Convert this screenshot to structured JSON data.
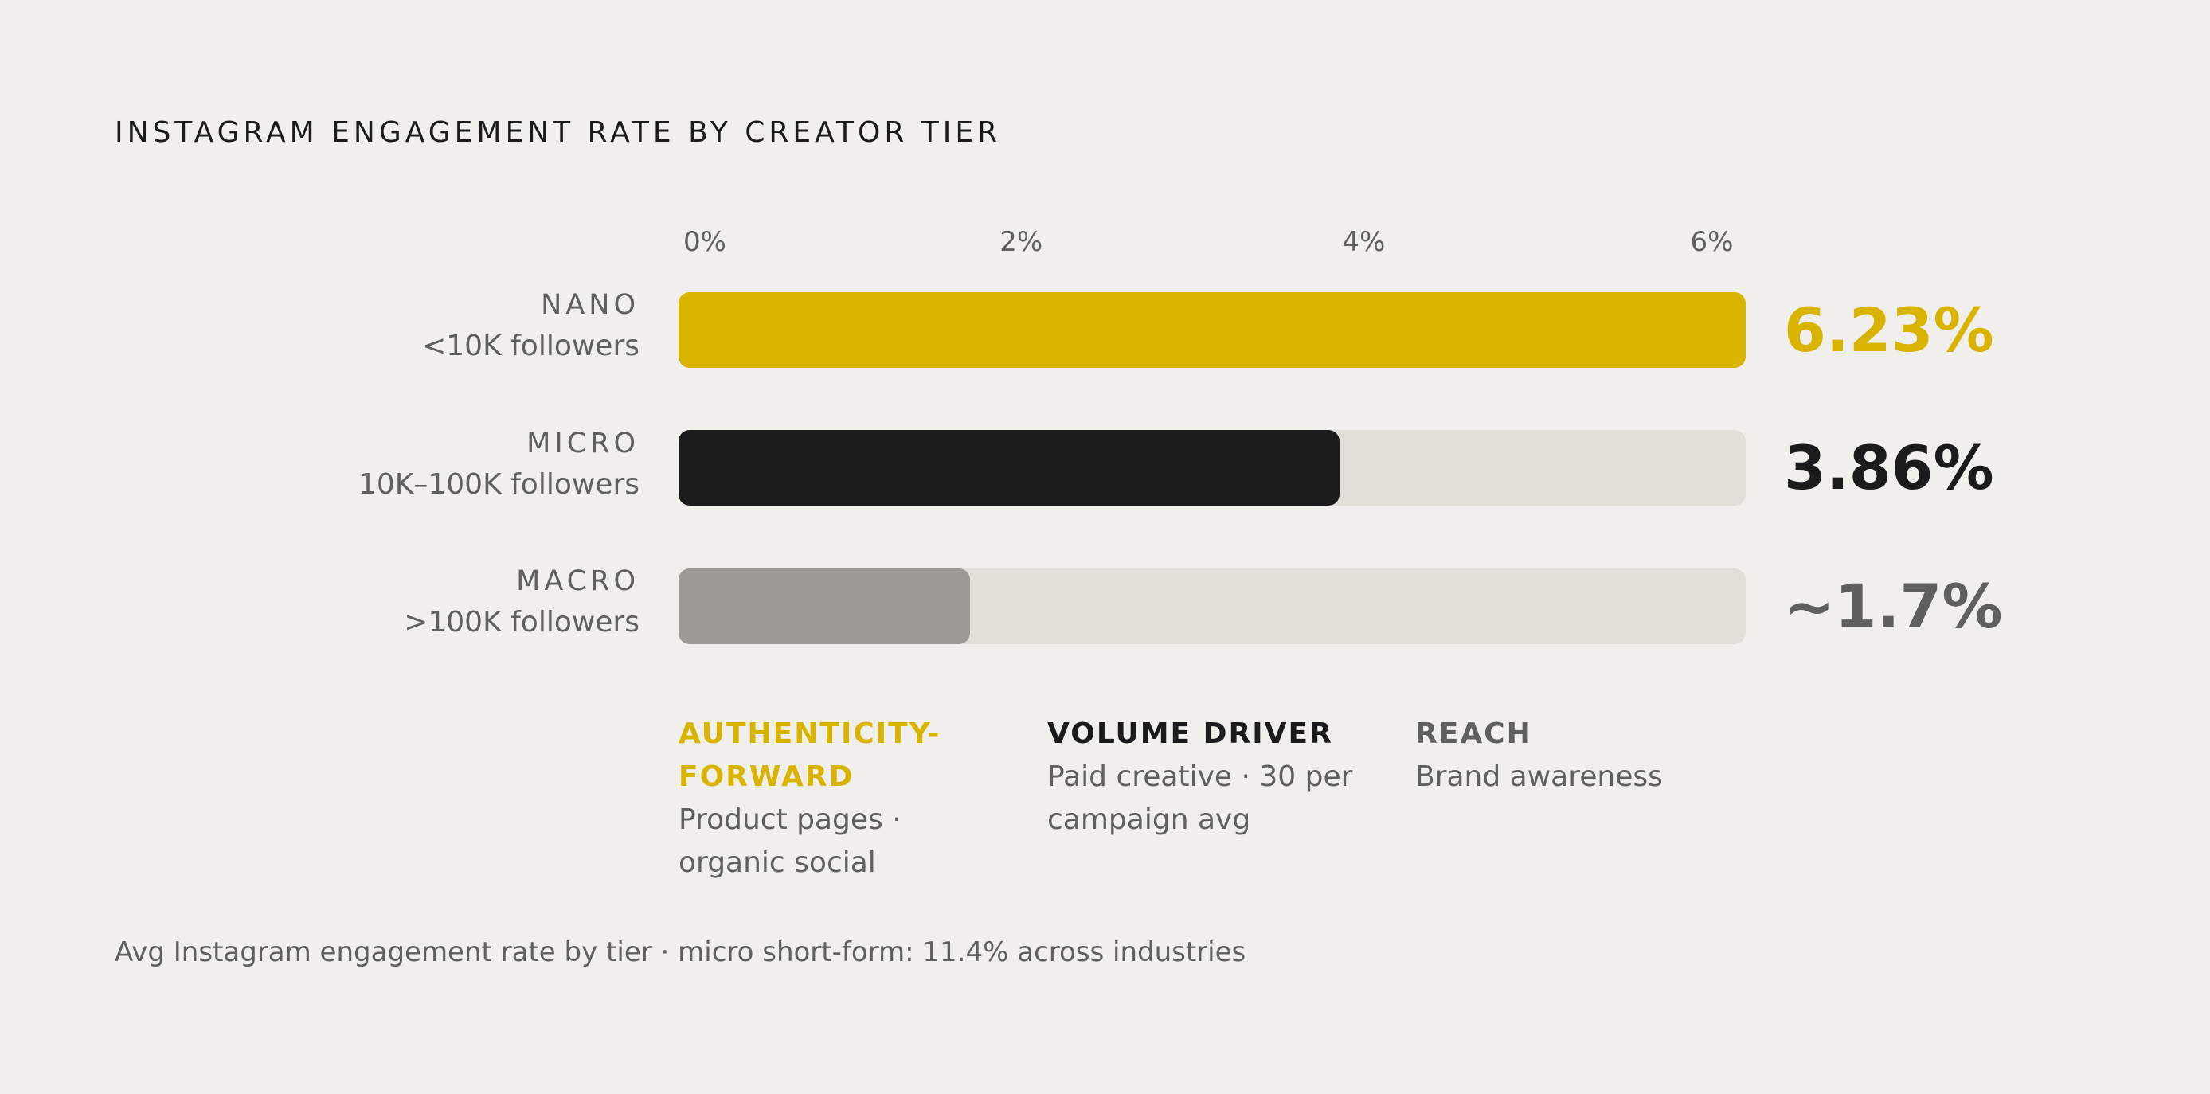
{
  "chart_data": {
    "type": "bar",
    "orientation": "horizontal",
    "title": "INSTAGRAM ENGAGEMENT RATE BY CREATOR TIER",
    "xlim": [
      0,
      6.23
    ],
    "ticks": [
      "0%",
      "2%",
      "4%",
      "6%"
    ],
    "tick_values": [
      0,
      2,
      4,
      6
    ],
    "categories": [
      "NANO",
      "MICRO",
      "MACRO"
    ],
    "category_sublabels": [
      "<10K followers",
      "10K–100K followers",
      ">100K followers"
    ],
    "values": [
      6.23,
      3.86,
      1.7
    ],
    "value_labels": [
      "6.23%",
      "3.86%",
      "~1.7%"
    ],
    "colors": [
      "#d8b400",
      "#1b1b1b",
      "#9b9a94"
    ],
    "track_color": "#e0dfd8",
    "grid": false,
    "notes": [
      {
        "head": "AUTHENTICITY-FORWARD",
        "sub": "Product pages · organic social",
        "color": "#d8b400"
      },
      {
        "head": "VOLUME DRIVER",
        "sub": "Paid creative · 30 per campaign avg",
        "color": "#1b1b1b"
      },
      {
        "head": "REACH",
        "sub": "Brand awareness",
        "color": "#5f5f5c"
      }
    ],
    "footer": "Avg Instagram engagement rate by tier · micro short-form: 11.4% across industries"
  }
}
